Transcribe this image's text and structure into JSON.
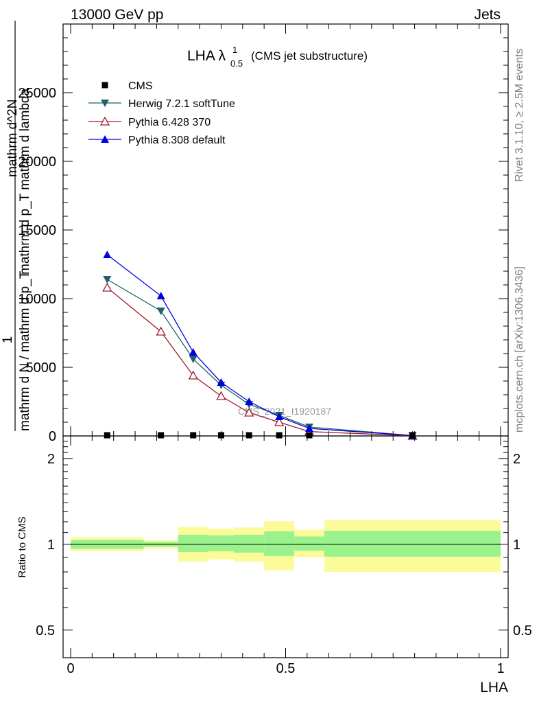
{
  "header": {
    "energy": "13000 GeV pp",
    "process": "Jets"
  },
  "side_labels": {
    "rivet": "Rivet 3.1.10, ≥ 2.5M events",
    "mcplots": "mcplots.cern.ch [arXiv:1306.3436]"
  },
  "watermark": "CMS_2021_I1920187",
  "plot_title": {
    "main": "LHA λ",
    "sup": "1",
    "sub": "0.5",
    "note": "(CMS jet substructure)"
  },
  "main_ylabel": {
    "numerator_1": "1",
    "denominator_1": "mathrm d N / mathrm d p_T",
    "numerator_2": "mathrm d^2N",
    "denominator_2": "mathrm d p_T mathrm d lambda"
  },
  "ratio_ylabel": "Ratio to CMS",
  "xlabel": "LHA",
  "colors": {
    "data": "#000000",
    "herwig": "#1f6166",
    "pythia6": "#a0182a",
    "pythia8": "#0000e0",
    "band_inner": "#99f28c",
    "band_outer": "#fbfb99"
  },
  "chart_data": [
    {
      "type": "line",
      "panel": "main",
      "xlim": [
        0,
        1
      ],
      "ylim": [
        0,
        30000
      ],
      "x_ticks": [],
      "y_ticks": [
        0,
        5000,
        10000,
        15000,
        20000,
        25000
      ],
      "y_tick_labels": [
        "0",
        "5000",
        "10000",
        "15000",
        "20000",
        "25000"
      ],
      "legend_position": "top-left",
      "series": [
        {
          "name": "CMS",
          "marker": "square",
          "x": [
            0.085,
            0.21,
            0.285,
            0.35,
            0.415,
            0.485,
            0.555,
            0.795
          ],
          "y": [
            0,
            0,
            0,
            0,
            0,
            0,
            0,
            0
          ]
        },
        {
          "name": "Herwig 7.2.1 softTune",
          "marker": "triangle-down",
          "x": [
            0.085,
            0.21,
            0.285,
            0.35,
            0.415,
            0.485,
            0.555,
            0.795
          ],
          "y": [
            11400,
            9100,
            5600,
            3700,
            2300,
            1500,
            650,
            30
          ]
        },
        {
          "name": "Pythia 6.428 370",
          "marker": "triangle-up-open",
          "x": [
            0.085,
            0.21,
            0.285,
            0.35,
            0.415,
            0.485,
            0.555,
            0.795
          ],
          "y": [
            10800,
            7600,
            4400,
            2900,
            1700,
            1000,
            320,
            10
          ]
        },
        {
          "name": "Pythia 8.308 default",
          "marker": "triangle-up",
          "x": [
            0.085,
            0.21,
            0.285,
            0.35,
            0.415,
            0.485,
            0.555,
            0.795
          ],
          "y": [
            13200,
            10200,
            6100,
            3900,
            2500,
            1400,
            550,
            25
          ]
        }
      ]
    },
    {
      "type": "area",
      "panel": "ratio",
      "xlim": [
        0,
        1
      ],
      "ylim": [
        0.4,
        2.4
      ],
      "yscale": "log",
      "x_ticks": [
        0,
        0.5,
        1
      ],
      "x_tick_labels": [
        "0",
        "0.5",
        "1"
      ],
      "y_ticks": [
        0.5,
        1,
        2
      ],
      "y_tick_labels": [
        "0.5",
        "1",
        "2"
      ],
      "reference_line": 1,
      "bins": [
        {
          "lo": 0.0,
          "hi": 0.17,
          "inner": [
            0.965,
            1.035
          ],
          "outer": [
            0.945,
            1.06
          ]
        },
        {
          "lo": 0.17,
          "hi": 0.25,
          "inner": [
            0.98,
            1.02
          ],
          "outer": [
            0.965,
            1.035
          ]
        },
        {
          "lo": 0.25,
          "hi": 0.32,
          "inner": [
            0.94,
            1.08
          ],
          "outer": [
            0.87,
            1.15
          ]
        },
        {
          "lo": 0.32,
          "hi": 0.38,
          "inner": [
            0.945,
            1.075
          ],
          "outer": [
            0.885,
            1.135
          ]
        },
        {
          "lo": 0.38,
          "hi": 0.45,
          "inner": [
            0.935,
            1.08
          ],
          "outer": [
            0.87,
            1.145
          ]
        },
        {
          "lo": 0.45,
          "hi": 0.52,
          "inner": [
            0.91,
            1.11
          ],
          "outer": [
            0.81,
            1.205
          ]
        },
        {
          "lo": 0.52,
          "hi": 0.59,
          "inner": [
            0.95,
            1.065
          ],
          "outer": [
            0.9,
            1.125
          ]
        },
        {
          "lo": 0.59,
          "hi": 1.0,
          "inner": [
            0.905,
            1.115
          ],
          "outer": [
            0.8,
            1.215
          ]
        }
      ]
    }
  ]
}
